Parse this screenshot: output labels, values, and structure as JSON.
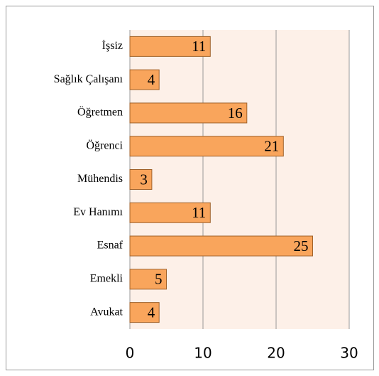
{
  "chart_data": {
    "type": "barh",
    "categories": [
      "İşsiz",
      "Sağlık Çalışanı",
      "Öğretmen",
      "Öğrenci",
      "Mühendis",
      "Ev Hanımı",
      "Esnaf",
      "Emekli",
      "Avukat"
    ],
    "values": [
      11,
      4,
      16,
      21,
      3,
      11,
      25,
      5,
      4
    ],
    "color": "#f9a55c",
    "xlim": [
      0,
      30
    ],
    "xticks": [
      0,
      10,
      20,
      30
    ],
    "grid": true
  }
}
